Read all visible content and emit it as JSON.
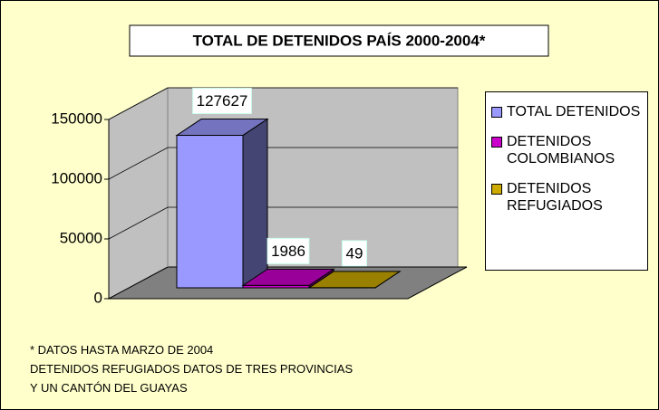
{
  "chart_data": {
    "type": "bar3d",
    "title": "TOTAL DE DETENIDOS PAÍS 2000-2004*",
    "series": [
      {
        "name": "TOTAL DETENIDOS",
        "color": "#9999ff",
        "values": [
          127627
        ]
      },
      {
        "name": "DETENIDOS COLOMBIANOS",
        "color": "#cc00cc",
        "values": [
          1986
        ]
      },
      {
        "name": "DETENIDOS REFUGIADOS",
        "color": "#ccaa00",
        "values": [
          49
        ]
      }
    ],
    "ylim": [
      0,
      150000
    ],
    "yticks": [
      0,
      50000,
      100000,
      150000
    ],
    "grid": true,
    "legend": "right",
    "notes": [
      "* DATOS HASTA MARZO DE 2004",
      "DETENIDOS REFUGIADOS DATOS DE TRES PROVINCIAS",
      "Y UN CANTÓN DEL GUAYAS"
    ]
  }
}
